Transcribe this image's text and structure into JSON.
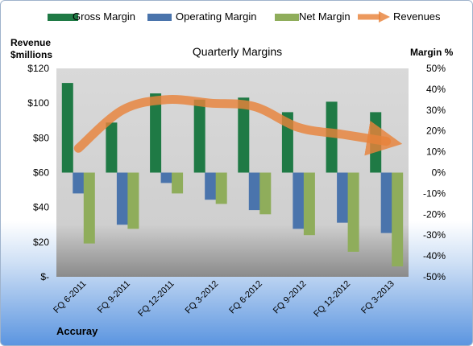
{
  "chart_data": {
    "type": "bar",
    "title": "Quarterly Margins",
    "company": "Accuray",
    "y_left_label": [
      "Revenue",
      "$millions"
    ],
    "y_right_label": "Margin %",
    "categories": [
      "FQ 6-2011",
      "FQ 9-2011",
      "FQ 12-2011",
      "FQ 3-2012",
      "FQ 6-2012",
      "FQ 9-2012",
      "FQ 12-2012",
      "FQ 3-2013"
    ],
    "y_left_ticks": [
      "$-",
      "$20",
      "$40",
      "$60",
      "$80",
      "$100",
      "$120"
    ],
    "y_left_lim": [
      0,
      120
    ],
    "y_right_ticks": [
      "-50%",
      "-40%",
      "-30%",
      "-20%",
      "-10%",
      "0%",
      "10%",
      "20%",
      "30%",
      "40%",
      "50%"
    ],
    "y_right_lim": [
      -50,
      50
    ],
    "series": [
      {
        "name": "Gross Margin",
        "axis": "right",
        "type": "bar",
        "color": "#1f7a45",
        "values": [
          43,
          24,
          38,
          35,
          36,
          29,
          34,
          29
        ]
      },
      {
        "name": "Operating Margin",
        "axis": "right",
        "type": "bar",
        "color": "#4a74ac",
        "values": [
          -10,
          -25,
          -5,
          -13,
          -18,
          -27,
          -24,
          -29
        ]
      },
      {
        "name": "Net Margin",
        "axis": "right",
        "type": "bar",
        "color": "#8fad5b",
        "values": [
          -34,
          -27,
          -10,
          -15,
          -20,
          -30,
          -38,
          -45
        ]
      },
      {
        "name": "Revenues",
        "axis": "left",
        "type": "line",
        "color": "#e8833a",
        "values": [
          74,
          96,
          102,
          100,
          98,
          86,
          82,
          78
        ]
      }
    ],
    "grid": false,
    "legend": "top"
  }
}
